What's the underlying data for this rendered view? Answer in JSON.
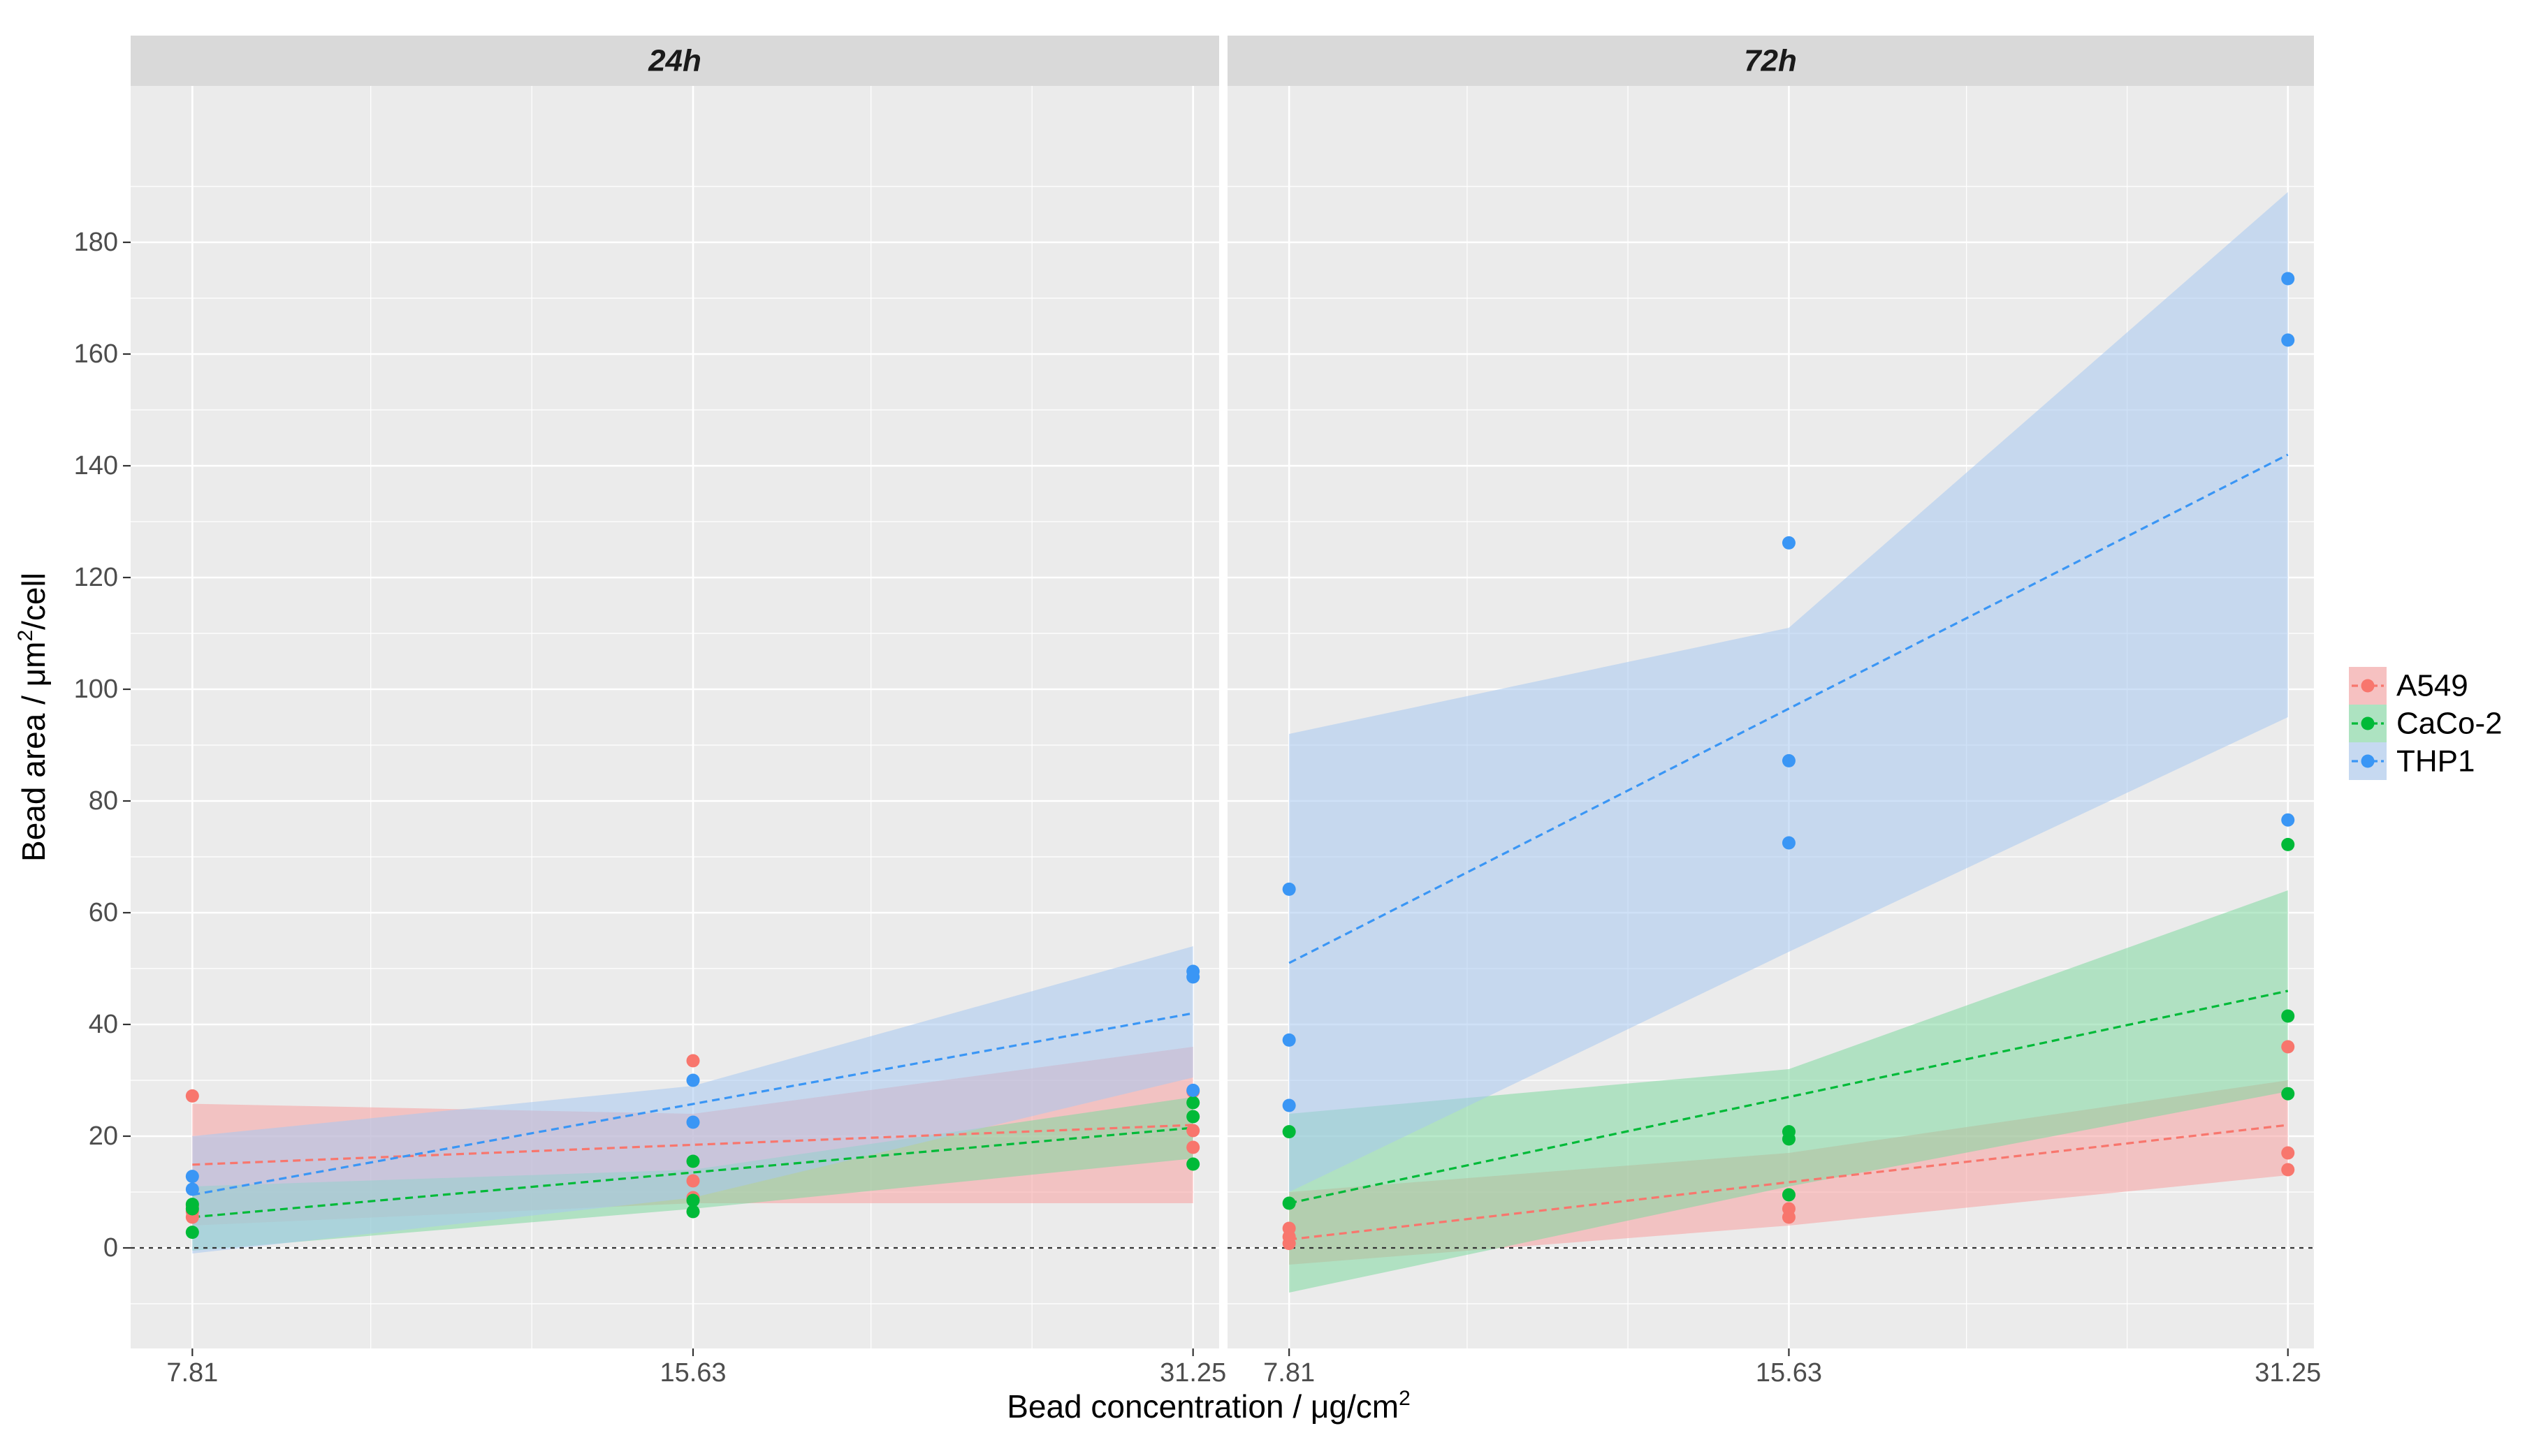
{
  "chart_data": {
    "type": "scatter",
    "title": "",
    "facets": [
      {
        "label": "24h",
        "points": {
          "A549": [
            [
              7.81,
              27.2
            ],
            [
              7.81,
              7.5
            ],
            [
              7.81,
              6.5
            ],
            [
              7.81,
              5.5
            ],
            [
              15.63,
              33.5
            ],
            [
              15.63,
              12.0
            ],
            [
              15.63,
              9.0
            ],
            [
              31.25,
              28.0
            ],
            [
              31.25,
              21.0
            ],
            [
              31.25,
              18.0
            ]
          ],
          "CaCo-2": [
            [
              7.81,
              7.8
            ],
            [
              7.81,
              7.0
            ],
            [
              7.81,
              2.8
            ],
            [
              15.63,
              15.5
            ],
            [
              15.63,
              8.5
            ],
            [
              15.63,
              6.5
            ],
            [
              31.25,
              26.0
            ],
            [
              31.25,
              23.5
            ],
            [
              31.25,
              15.0
            ]
          ],
          "THP1": [
            [
              7.81,
              12.8
            ],
            [
              7.81,
              10.5
            ],
            [
              15.63,
              30.0
            ],
            [
              15.63,
              22.5
            ],
            [
              31.25,
              49.5
            ],
            [
              31.25,
              48.5
            ],
            [
              31.25,
              28.2
            ]
          ]
        },
        "fits": {
          "A549": {
            "x": [
              7.81,
              31.25
            ],
            "y": [
              14.9,
              22.0
            ]
          },
          "CaCo-2": {
            "x": [
              7.81,
              31.25
            ],
            "y": [
              5.5,
              21.5
            ]
          },
          "THP1": {
            "x": [
              7.81,
              31.25
            ],
            "y": [
              9.5,
              42.0
            ]
          }
        },
        "bands": {
          "A549": {
            "x": [
              7.81,
              15.63,
              31.25
            ],
            "lower": [
              4.0,
              8.0,
              8.0
            ],
            "upper": [
              25.8,
              24.0,
              36.0
            ]
          },
          "CaCo-2": {
            "x": [
              7.81,
              15.63,
              31.25
            ],
            "lower": [
              -0.5,
              7.0,
              16.0
            ],
            "upper": [
              11.0,
              14.0,
              27.0
            ]
          },
          "THP1": {
            "x": [
              7.81,
              15.63,
              31.25
            ],
            "lower": [
              -1.0,
              9.0,
              30.5
            ],
            "upper": [
              20.0,
              29.0,
              54.0
            ]
          }
        }
      },
      {
        "label": "72h",
        "points": {
          "A549": [
            [
              7.81,
              3.5
            ],
            [
              7.81,
              2.0
            ],
            [
              7.81,
              0.8
            ],
            [
              15.63,
              7.0
            ],
            [
              15.63,
              5.5
            ],
            [
              31.25,
              36.0
            ],
            [
              31.25,
              17.0
            ],
            [
              31.25,
              14.0
            ]
          ],
          "CaCo-2": [
            [
              7.81,
              20.8
            ],
            [
              7.81,
              8.0
            ],
            [
              15.63,
              20.8
            ],
            [
              15.63,
              19.5
            ],
            [
              15.63,
              9.5
            ],
            [
              31.25,
              72.2
            ],
            [
              31.25,
              41.5
            ],
            [
              31.25,
              27.6
            ]
          ],
          "THP1": [
            [
              7.81,
              64.2
            ],
            [
              7.81,
              37.2
            ],
            [
              7.81,
              25.5
            ],
            [
              15.63,
              126.2
            ],
            [
              15.63,
              87.2
            ],
            [
              15.63,
              72.5
            ],
            [
              31.25,
              173.5
            ],
            [
              31.25,
              162.5
            ],
            [
              31.25,
              76.6
            ]
          ]
        },
        "fits": {
          "A549": {
            "x": [
              7.81,
              31.25
            ],
            "y": [
              1.5,
              22.0
            ]
          },
          "CaCo-2": {
            "x": [
              7.81,
              31.25
            ],
            "y": [
              8.0,
              46.0
            ]
          },
          "THP1": {
            "x": [
              7.81,
              31.25
            ],
            "y": [
              51.0,
              142.0
            ]
          }
        },
        "bands": {
          "A549": {
            "x": [
              7.81,
              15.63,
              31.25
            ],
            "lower": [
              -3.0,
              4.0,
              13.0
            ],
            "upper": [
              10.0,
              17.0,
              30.0
            ]
          },
          "CaCo-2": {
            "x": [
              7.81,
              15.63,
              31.25
            ],
            "lower": [
              -8.0,
              11.0,
              28.0
            ],
            "upper": [
              24.0,
              32.0,
              64.0
            ]
          },
          "THP1": {
            "x": [
              7.81,
              15.63,
              31.25
            ],
            "lower": [
              10.0,
              53.0,
              95.0
            ],
            "upper": [
              92.0,
              111.0,
              189.0
            ]
          }
        }
      }
    ],
    "series": [
      {
        "name": "A549",
        "color": "#F8766D",
        "fill": "#F8A0A0"
      },
      {
        "name": "CaCo-2",
        "color": "#00BA38",
        "fill": "#7FD8A0"
      },
      {
        "name": "THP1",
        "color": "#3A96F5",
        "fill": "#A8C8F0"
      }
    ],
    "x_ticks": [
      7.81,
      15.63,
      31.25
    ],
    "x_tick_labels": [
      "7.81",
      "15.63",
      "31.25"
    ],
    "x_minor_ticks": [
      10,
      12.5,
      20,
      25
    ],
    "y_ticks": [
      0,
      20,
      40,
      60,
      80,
      100,
      120,
      140,
      160,
      180
    ],
    "y_tick_labels": [
      "0",
      "20",
      "40",
      "60",
      "80",
      "100",
      "120",
      "140",
      "160",
      "180"
    ],
    "xlim": [
      7.17,
      32.4
    ],
    "ylim": [
      -18,
      208
    ],
    "xscale": "log",
    "hline": 0,
    "xlabel": {
      "main": "Bead concentration / μg/cm",
      "sup": "2"
    },
    "ylabel": {
      "pre": "Bead area / μm",
      "sup": "2",
      "post": "/cell"
    },
    "legend_position": "right"
  }
}
